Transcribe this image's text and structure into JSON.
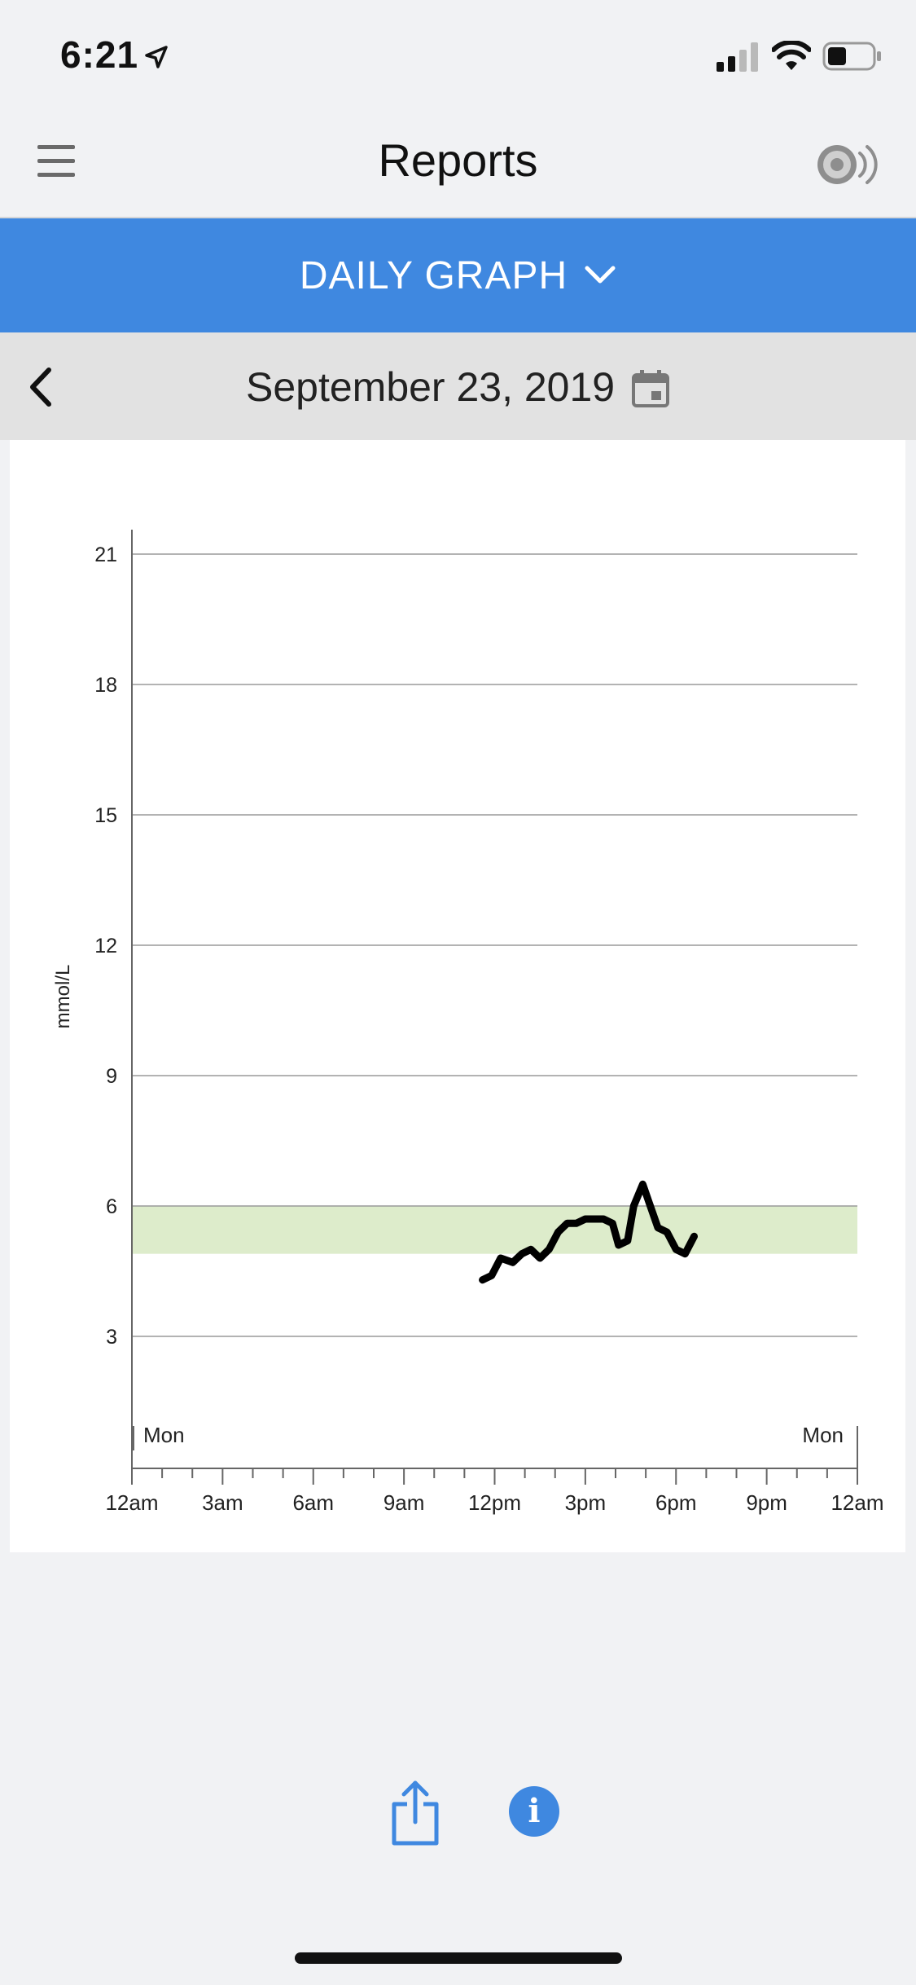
{
  "status_bar": {
    "time": "6:21",
    "icons": [
      "location-arrow-icon",
      "cellular-signal-icon",
      "wifi-icon",
      "battery-icon"
    ]
  },
  "header": {
    "title": "Reports",
    "left_icon": "hamburger-menu-icon",
    "right_icon": "sensor-sound-icon"
  },
  "report_selector": {
    "label": "DAILY GRAPH",
    "icon": "chevron-down-icon"
  },
  "date_nav": {
    "date": "September 23, 2019",
    "prev_icon": "chevron-left-icon",
    "calendar_icon": "calendar-icon"
  },
  "chart_data": {
    "type": "line",
    "ylabel": "mmol/L",
    "ylim": [
      0,
      21.5
    ],
    "y_ticks": [
      3,
      6,
      9,
      12,
      15,
      18,
      21
    ],
    "x_range_hours": [
      0,
      24
    ],
    "x_ticks": [
      "12am",
      "3am",
      "6am",
      "9am",
      "12pm",
      "3pm",
      "6pm",
      "9pm",
      "12am"
    ],
    "day_labels": {
      "start": "Mon",
      "end": "Mon"
    },
    "target_range": [
      4.9,
      6.0
    ],
    "target_color": "#ddeccb",
    "line_color": "#000000",
    "grid": true,
    "series": [
      {
        "points": [
          [
            11.6,
            4.3
          ],
          [
            11.9,
            4.4
          ],
          [
            12.2,
            4.8
          ],
          [
            12.6,
            4.7
          ],
          [
            12.9,
            4.9
          ],
          [
            13.2,
            5.0
          ],
          [
            13.5,
            4.8
          ],
          [
            13.8,
            5.0
          ],
          [
            14.1,
            5.4
          ],
          [
            14.4,
            5.6
          ],
          [
            14.7,
            5.6
          ],
          [
            15.0,
            5.7
          ],
          [
            15.3,
            5.7
          ],
          [
            15.6,
            5.7
          ],
          [
            15.9,
            5.6
          ],
          [
            16.1,
            5.1
          ],
          [
            16.4,
            5.2
          ],
          [
            16.6,
            6.0
          ],
          [
            16.9,
            6.5
          ],
          [
            17.1,
            6.1
          ],
          [
            17.4,
            5.5
          ],
          [
            17.7,
            5.4
          ],
          [
            18.0,
            5.0
          ],
          [
            18.3,
            4.9
          ],
          [
            18.6,
            5.3
          ]
        ]
      }
    ]
  },
  "bottom_actions": {
    "share_icon": "share-icon",
    "info_label": "i"
  }
}
